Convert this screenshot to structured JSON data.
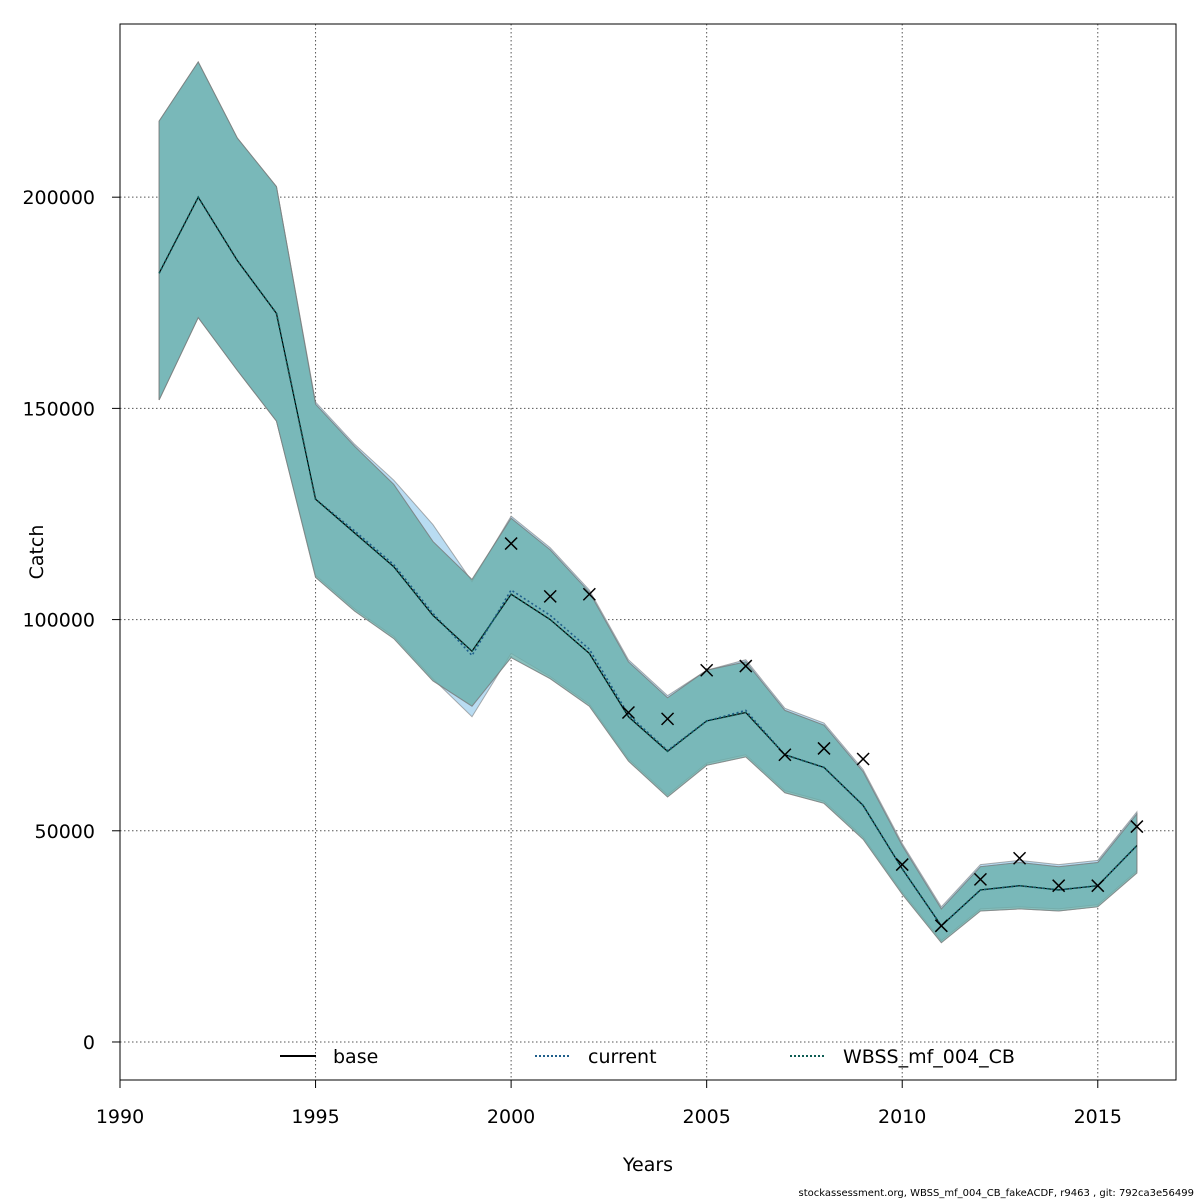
{
  "chart_data": {
    "type": "line",
    "xlabel": "Years",
    "ylabel": "Catch",
    "xlim": [
      1990,
      2017
    ],
    "ylim": [
      -9000,
      241000
    ],
    "x_ticks": [
      "1990",
      "1995",
      "2000",
      "2005",
      "2010",
      "2015"
    ],
    "x_tick_values": [
      1990,
      1995,
      2000,
      2005,
      2010,
      2015
    ],
    "y_ticks": [
      "0",
      "50000",
      "100000",
      "150000",
      "200000"
    ],
    "y_tick_values": [
      0,
      50000,
      100000,
      150000,
      200000
    ],
    "grid": true,
    "legend_position": "bottom-center",
    "legend": [
      {
        "label": "base",
        "style": "solid",
        "color": "#000000"
      },
      {
        "label": "current",
        "style": "dotted",
        "color": "#1f5f8b"
      },
      {
        "label": "WBSS_mf_004_CB",
        "style": "dotted",
        "color": "#0d5c53"
      }
    ],
    "x": [
      1991,
      1992,
      1993,
      1994,
      1995,
      1996,
      1997,
      1998,
      1999,
      2000,
      2001,
      2002,
      2003,
      2004,
      2005,
      2006,
      2007,
      2008,
      2009,
      2010,
      2011,
      2012,
      2013,
      2014,
      2015,
      2016
    ],
    "series": [
      {
        "name": "base",
        "color": "#000000",
        "values": [
          182000,
          200000,
          185000,
          172500,
          128500,
          120500,
          112500,
          101000,
          92500,
          106000,
          100000,
          92000,
          77000,
          68800,
          76000,
          78000,
          68000,
          65000,
          56000,
          41000,
          27500,
          36000,
          37000,
          36000,
          37000,
          46500
        ],
        "upper": [
          218000,
          232000,
          214000,
          202500,
          151000,
          141000,
          132000,
          118500,
          109500,
          124000,
          116500,
          106500,
          90000,
          81500,
          88000,
          90000,
          78500,
          75000,
          64000,
          46500,
          31500,
          41500,
          42500,
          41500,
          42500,
          54000
        ],
        "lower": [
          152000,
          171500,
          159000,
          147000,
          110000,
          102000,
          95500,
          85500,
          79500,
          91000,
          86000,
          79500,
          66500,
          58000,
          65500,
          67500,
          59000,
          56500,
          48000,
          35000,
          23500,
          31000,
          31500,
          31000,
          32000,
          40000
        ]
      },
      {
        "name": "current",
        "color": "#1f5f8b",
        "values": [
          182000,
          200000,
          185000,
          172500,
          128500,
          121000,
          113000,
          101500,
          91500,
          107000,
          101000,
          93000,
          77500,
          69000,
          76000,
          78500,
          68000,
          65000,
          56000,
          41000,
          27500,
          36000,
          37000,
          36000,
          37000,
          46500
        ],
        "upper": [
          218000,
          232000,
          214000,
          202500,
          151500,
          141500,
          133000,
          122500,
          109000,
          124500,
          117000,
          107000,
          90500,
          82000,
          88000,
          90500,
          79000,
          75500,
          64500,
          47000,
          32000,
          42000,
          43000,
          42000,
          43000,
          54500
        ],
        "lower": [
          152000,
          171500,
          159000,
          147000,
          110500,
          102500,
          96000,
          86000,
          77000,
          92000,
          86500,
          80000,
          67000,
          58500,
          66000,
          68000,
          59500,
          57000,
          48500,
          35500,
          24000,
          31500,
          32000,
          31500,
          32500,
          40500
        ]
      },
      {
        "name": "WBSS_mf_004_CB",
        "color": "#0d5c53",
        "values": [
          182000,
          200000,
          185000,
          172500,
          128500,
          120500,
          112500,
          101000,
          92500,
          106000,
          100000,
          92000,
          77000,
          68800,
          76000,
          78000,
          68000,
          65000,
          56000,
          41000,
          27500,
          36000,
          37000,
          36000,
          37000,
          46500
        ],
        "upper": [
          218000,
          232000,
          214000,
          202500,
          151000,
          141000,
          132000,
          118500,
          109500,
          124000,
          116500,
          106500,
          90000,
          81500,
          88000,
          90000,
          78500,
          75000,
          64000,
          46500,
          31500,
          41500,
          42500,
          41500,
          42500,
          54000
        ],
        "lower": [
          152000,
          171500,
          159000,
          147000,
          110000,
          102000,
          95500,
          85500,
          79500,
          91000,
          86000,
          79500,
          66500,
          58000,
          65500,
          67500,
          59000,
          56500,
          48000,
          35000,
          23500,
          31000,
          31500,
          31000,
          32000,
          40000
        ]
      }
    ],
    "observations": {
      "marker": "x",
      "x": [
        2000,
        2001,
        2002,
        2003,
        2004,
        2005,
        2006,
        2007,
        2008,
        2009,
        2010,
        2011,
        2012,
        2013,
        2014,
        2015,
        2016
      ],
      "y": [
        118000,
        105500,
        106000,
        78000,
        76500,
        88000,
        89000,
        68000,
        69500,
        67000,
        42000,
        27500,
        38500,
        43500,
        37000,
        37000,
        51000
      ]
    },
    "band_colors": {
      "current": "#b9dcf2",
      "base": "#6aaeab"
    }
  },
  "footer": "stockassessment.org, WBSS_mf_004_CB_fakeACDF, r9463 , git: 792ca3e56499"
}
